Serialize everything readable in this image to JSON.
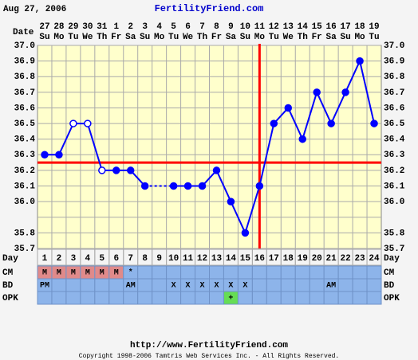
{
  "header": {
    "date": "Aug 27, 2006",
    "site": "FertilityFriend.com"
  },
  "chart_data": {
    "type": "line",
    "x_label": "Date",
    "day_label": "Day",
    "dates": [
      "27",
      "28",
      "29",
      "30",
      "31",
      "1",
      "2",
      "3",
      "4",
      "5",
      "6",
      "7",
      "8",
      "9",
      "10",
      "11",
      "12",
      "13",
      "14",
      "15",
      "16",
      "17",
      "18",
      "19"
    ],
    "weekdays": [
      "Su",
      "Mo",
      "Tu",
      "We",
      "Th",
      "Fr",
      "Sa",
      "Su",
      "Mo",
      "Tu",
      "We",
      "Th",
      "Fr",
      "Sa",
      "Su",
      "Mo",
      "Tu",
      "We",
      "Th",
      "Fr",
      "Sa",
      "Su",
      "Mo",
      "Tu"
    ],
    "categories": [
      1,
      2,
      3,
      4,
      5,
      6,
      7,
      8,
      9,
      10,
      11,
      12,
      13,
      14,
      15,
      16,
      17,
      18,
      19,
      20,
      21,
      22,
      23,
      24
    ],
    "values": [
      36.3,
      36.3,
      36.5,
      36.5,
      36.2,
      36.2,
      36.2,
      36.1,
      null,
      36.1,
      36.1,
      36.1,
      36.2,
      36.0,
      35.8,
      36.1,
      36.5,
      36.6,
      36.4,
      36.7,
      36.5,
      36.7,
      36.9,
      36.5
    ],
    "hollow": [
      false,
      false,
      true,
      true,
      true,
      false,
      false,
      false,
      false,
      false,
      false,
      false,
      false,
      false,
      false,
      false,
      false,
      false,
      false,
      false,
      false,
      false,
      false,
      false
    ],
    "color": "#0000ff",
    "coverline": 36.25,
    "coverline_color": "#ff0000",
    "ovulation_day": 16,
    "ylim": [
      35.7,
      37.0
    ],
    "yticks": [
      {
        "value": 37,
        "label": "37.0"
      },
      36.9,
      36.8,
      36.7,
      36.6,
      36.5,
      36.4,
      36.3,
      36.2,
      36.1,
      {
        "value": 36,
        "label": "36.0"
      },
      35.8,
      35.7
    ],
    "ygrid": [
      37.0,
      36.9,
      36.8,
      36.7,
      36.6,
      36.5,
      36.4,
      36.3,
      36.2,
      36.1,
      36.0,
      35.9,
      35.8,
      35.7
    ],
    "grid": true,
    "rows": [
      {
        "label": "CM",
        "cells": [
          "M",
          "M",
          "M",
          "M",
          "M",
          "M",
          "*",
          null,
          null,
          null,
          null,
          null,
          null,
          null,
          null,
          null,
          null,
          null,
          null,
          null,
          null,
          null,
          null,
          null
        ]
      },
      {
        "label": "BD",
        "cells": [
          "PM",
          null,
          null,
          null,
          null,
          null,
          "AM",
          null,
          null,
          "X",
          "X",
          "X",
          "X",
          "X",
          "X",
          null,
          null,
          null,
          null,
          null,
          "AM",
          null,
          null,
          null
        ]
      },
      {
        "label": "OPK",
        "cells": [
          null,
          null,
          null,
          null,
          null,
          null,
          null,
          null,
          null,
          null,
          null,
          null,
          null,
          "+",
          null,
          null,
          null,
          null,
          null,
          null,
          null,
          null,
          null,
          null
        ]
      }
    ],
    "highlight": {
      "M": "#e08a8a",
      "+": "#66dd55"
    }
  },
  "footer": {
    "url": "http://www.FertilityFriend.com",
    "copyright": "Copyright 1998-2006 Tamtris Web Services Inc. - All Rights Reserved."
  }
}
